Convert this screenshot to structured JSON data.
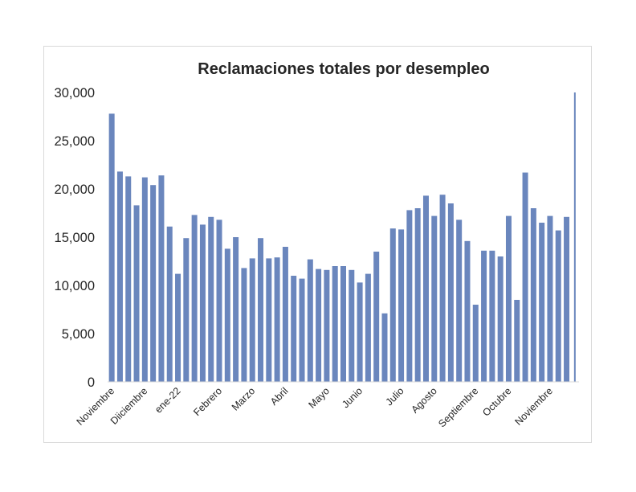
{
  "chart_data": {
    "type": "bar",
    "title": "Reclamaciones totales por desempleo",
    "xlabel": "",
    "ylabel": "",
    "ylim": [
      0,
      30000
    ],
    "yticks": [
      "0",
      "5,000",
      "10,000",
      "15,000",
      "20,000",
      "25,000",
      "30,000"
    ],
    "ytick_values": [
      0,
      5000,
      10000,
      15000,
      20000,
      25000,
      30000
    ],
    "grid": false,
    "legend": "none",
    "bar_color": "#6a86bd",
    "x_labels": [
      {
        "label": "Noviembre",
        "index": 0
      },
      {
        "label": "Diiciembre",
        "index": 4
      },
      {
        "label": "ene-22",
        "index": 8
      },
      {
        "label": "Febrero",
        "index": 13
      },
      {
        "label": "Marzo",
        "index": 17
      },
      {
        "label": "Abril",
        "index": 21
      },
      {
        "label": "Mayo",
        "index": 26
      },
      {
        "label": "Junio",
        "index": 30
      },
      {
        "label": "Julio",
        "index": 35
      },
      {
        "label": "Agosto",
        "index": 39
      },
      {
        "label": "Septiembre",
        "index": 44
      },
      {
        "label": "Octubre",
        "index": 48
      },
      {
        "label": "Noviembre",
        "index": 53
      }
    ],
    "values": [
      27800,
      21800,
      21300,
      18300,
      21200,
      20400,
      21400,
      16100,
      11200,
      14900,
      17300,
      16300,
      17100,
      16800,
      13800,
      15000,
      11800,
      12800,
      14900,
      12800,
      12900,
      14000,
      11000,
      10700,
      12700,
      11700,
      11600,
      12000,
      12000,
      11600,
      10300,
      11200,
      13500,
      7100,
      15900,
      15800,
      17800,
      18000,
      19300,
      17200,
      19400,
      18500,
      16800,
      14600,
      8000,
      13600,
      13600,
      13000,
      17200,
      8500,
      21700,
      18000,
      16500,
      17200,
      15700,
      17100,
      30000
    ]
  }
}
